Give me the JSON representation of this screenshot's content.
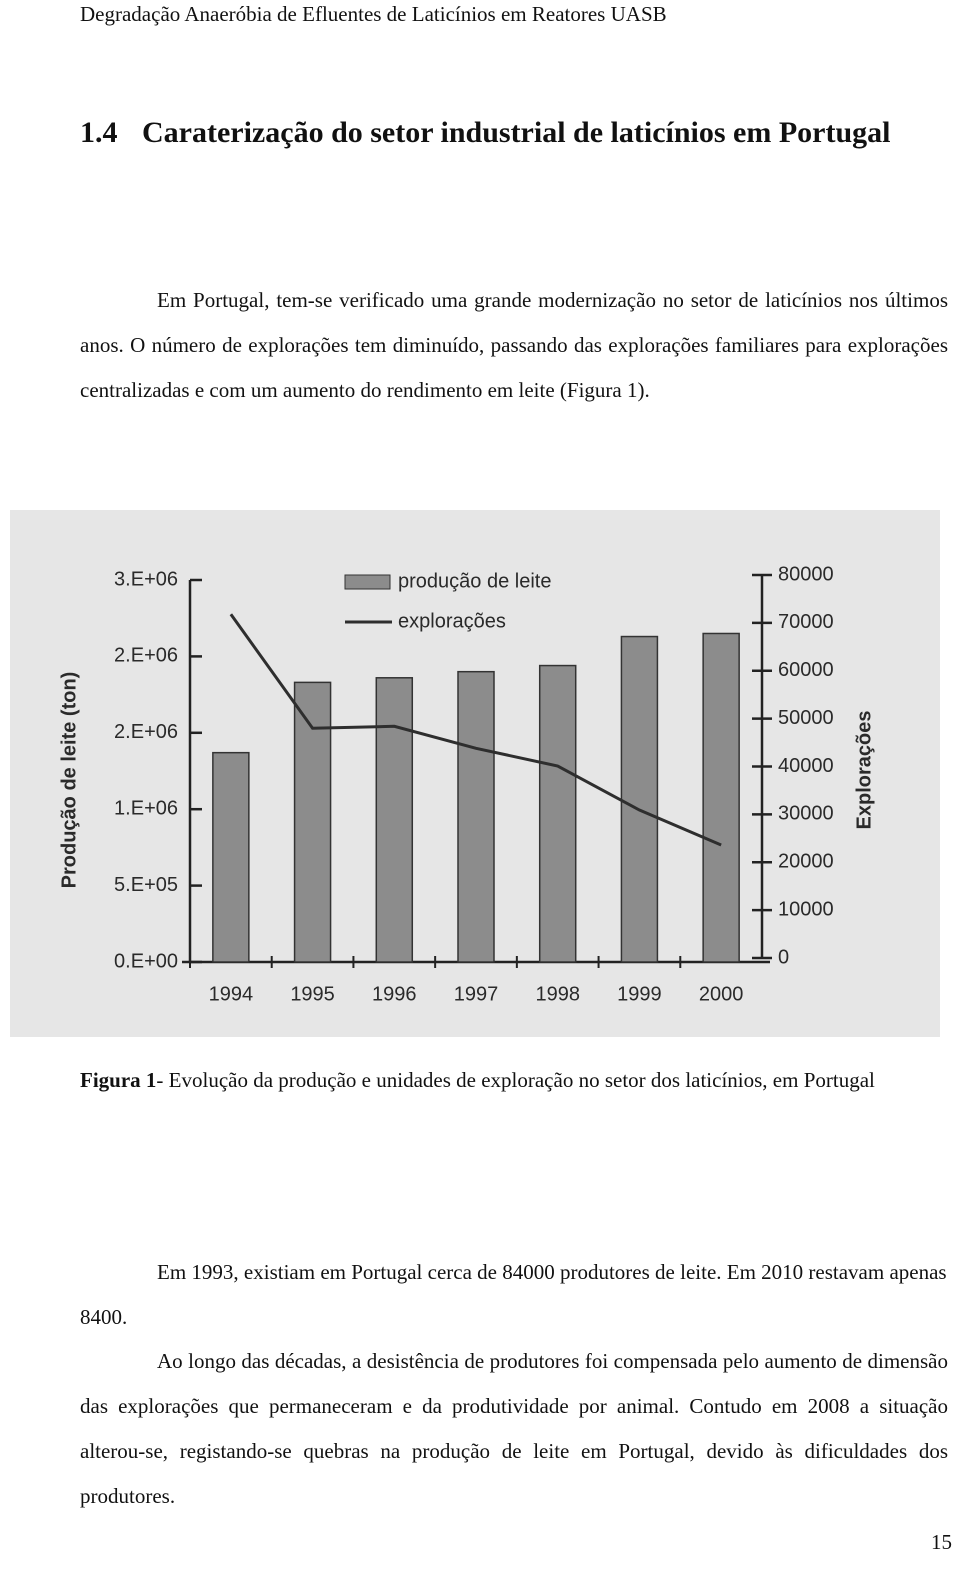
{
  "header": {
    "text": "Degradação Anaeróbia de Efluentes de Laticínios em Reatores UASB"
  },
  "section": {
    "number": "1.4",
    "title": "Caraterização do setor industrial de laticínios em Portugal"
  },
  "paragraphs": [
    "Em Portugal, tem-se verificado uma grande modernização no setor de laticínios nos últimos anos. O número de explorações tem diminuído, passando das explorações familiares para explorações centralizadas e com um aumento do rendimento em leite (Figura 1)."
  ],
  "chart_data": {
    "type": "bar",
    "y_label": "Produção de leite (ton)",
    "y2_label": "Explorações",
    "categories": [
      "1994",
      "1995",
      "1996",
      "1997",
      "1998",
      "1999",
      "2000"
    ],
    "series": [
      {
        "name": "produção de leite",
        "type": "bar",
        "color": "#8c8c8c",
        "values": [
          1370000,
          1830000,
          1860000,
          1900000,
          1940000,
          2130000,
          2150000
        ]
      },
      {
        "name": "explorações",
        "type": "line",
        "axis": "y2",
        "color": "#2e2e2e",
        "values": [
          71800,
          48000,
          48400,
          43800,
          40100,
          30900,
          23600
        ]
      }
    ],
    "ylim": [
      0,
      2500000
    ],
    "yticks": [
      {
        "value": 0,
        "label": "0.E+00"
      },
      {
        "value": 500000,
        "label": "5.E+05"
      },
      {
        "value": 1000000,
        "label": "1.E+06"
      },
      {
        "value": 1500000,
        "label": "2.E+06"
      },
      {
        "value": 2000000,
        "label": "2.E+06"
      },
      {
        "value": 2500000,
        "label": "3.E+06"
      }
    ],
    "y2lim": [
      0,
      80000
    ],
    "y2ticks": [
      0,
      10000,
      20000,
      30000,
      40000,
      50000,
      60000,
      70000,
      80000
    ],
    "legend": "top"
  },
  "caption": {
    "label": "Figura 1",
    "text": "- Evolução da produção e unidades de exploração no setor dos laticínios, em Portugal"
  },
  "paragraphs_after": [
    "Em 1993, existiam em Portugal cerca de 84000 produtores de leite. Em 2010 restavam apenas 8400.",
    "Ao longo das décadas, a desistência de produtores foi compensada pelo aumento de dimensão das explorações que permaneceram e da produtividade por animal. Contudo em 2008 a situação alterou-se, registando-se quebras na produção de leite em Portugal, devido às dificuldades dos produtores."
  ],
  "page_number": "15"
}
